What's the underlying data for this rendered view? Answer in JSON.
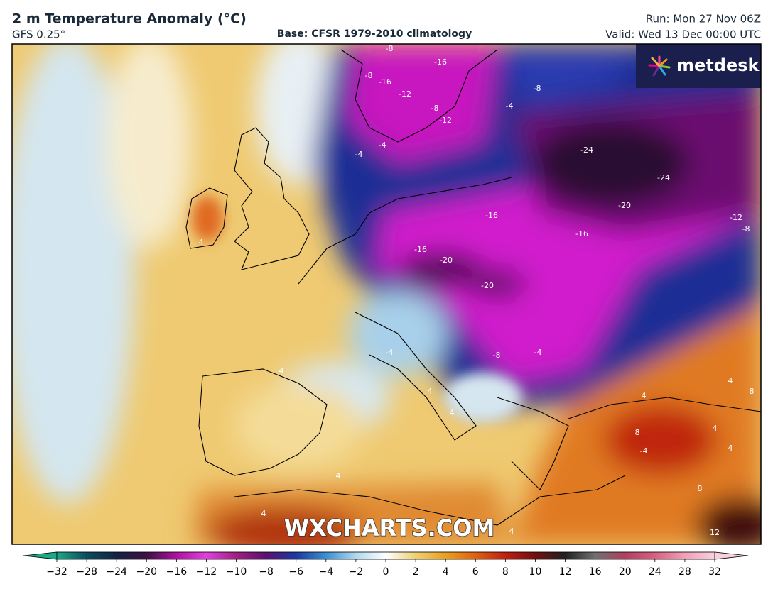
{
  "header": {
    "title": "2 m Temperature Anomaly (°C)",
    "model": "GFS 0.25°",
    "base": "Base: CFSR 1979-2010 climatology",
    "run": "Run: Mon 27 Nov 06Z",
    "valid": "Valid: Wed 13 Dec 00:00 UTC"
  },
  "logo": "metdesk",
  "watermark": "WXCHARTS.COM",
  "contour_labels": [
    -8,
    -16,
    -8,
    -16,
    -12,
    -8,
    -12,
    -8,
    -4,
    -4,
    -4,
    -24,
    -24,
    -20,
    -16,
    -16,
    -12,
    -8,
    -16,
    -20,
    -20,
    -8,
    -4,
    -4,
    4,
    4,
    4,
    4,
    4,
    4,
    8,
    8,
    -4,
    4,
    4,
    8,
    4,
    4,
    4,
    12
  ],
  "colorbar": {
    "ticks": [
      {
        "value": -32,
        "label": "−32"
      },
      {
        "value": -28,
        "label": "−28"
      },
      {
        "value": -24,
        "label": "−24"
      },
      {
        "value": -20,
        "label": "−20"
      },
      {
        "value": -16,
        "label": "−16"
      },
      {
        "value": -12,
        "label": "−12"
      },
      {
        "value": -10,
        "label": "−10"
      },
      {
        "value": -8,
        "label": "−8"
      },
      {
        "value": -6,
        "label": "−6"
      },
      {
        "value": -4,
        "label": "−4"
      },
      {
        "value": -2,
        "label": "−2"
      },
      0,
      2,
      4,
      6,
      8,
      10,
      12,
      16,
      20,
      24,
      28,
      32
    ],
    "colors": [
      "#1aaa88",
      "#0b4c5c",
      "#132243",
      "#3b1042",
      "#b010a0",
      "#e040e0",
      "#a02080",
      "#5a1070",
      "#1a3aa0",
      "#3a90d0",
      "#b0d8ee",
      "#ffffff",
      "#f0d070",
      "#e8a020",
      "#e06010",
      "#c02010",
      "#701010",
      "#202020",
      "#707070",
      "#b04060",
      "#d86080",
      "#f0a0b8",
      "#f8d0e0"
    ]
  }
}
